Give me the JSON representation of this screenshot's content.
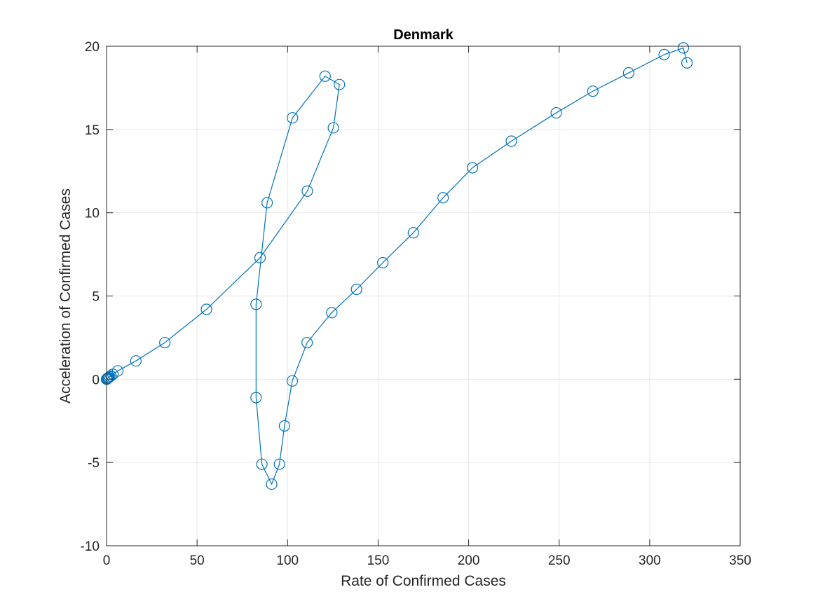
{
  "chart_data": {
    "type": "line",
    "title": "Denmark",
    "xlabel": "Rate of Confirmed Cases",
    "ylabel": "Acceleration of Confirmed Cases",
    "xlim": [
      0,
      350
    ],
    "ylim": [
      -10,
      20
    ],
    "xticks": [
      0,
      50,
      100,
      150,
      200,
      250,
      300,
      350
    ],
    "yticks": [
      -10,
      -5,
      0,
      5,
      10,
      15,
      20
    ],
    "xtick_labels": [
      "0",
      "50",
      "100",
      "150",
      "200",
      "250",
      "300",
      "350"
    ],
    "ytick_labels": [
      "-10",
      "-5",
      "0",
      "5",
      "10",
      "15",
      "20"
    ],
    "grid": true,
    "marker": "circle",
    "line_color": "#0072BD",
    "series": [
      {
        "x": [
          0,
          0.1,
          0.2,
          0.3,
          0.5,
          0.8,
          1.2,
          1.7,
          2.4,
          3.5,
          6.2,
          16.2,
          32.2,
          55.2,
          84.8,
          110.9,
          125.3,
          128.6,
          120.7,
          102.7,
          88.7,
          82.6,
          82.6,
          85.8,
          91.2,
          95.5,
          98.3,
          102.6,
          110.8,
          124.4,
          138.1,
          152.6,
          169.5,
          185.9,
          202.1,
          223.6,
          248.4,
          268.6,
          288.4,
          308.0,
          318.6,
          320.6
        ],
        "y": [
          0,
          0.01,
          0.02,
          0.03,
          0.05,
          0.08,
          0.1,
          0.15,
          0.2,
          0.3,
          0.5,
          1.1,
          2.2,
          4.2,
          7.3,
          11.3,
          15.1,
          17.7,
          18.2,
          15.7,
          10.6,
          4.5,
          -1.1,
          -5.1,
          -6.3,
          -5.1,
          -2.8,
          -0.1,
          2.2,
          4.0,
          5.4,
          7.0,
          8.8,
          10.9,
          12.7,
          14.3,
          16.0,
          17.3,
          18.4,
          19.5,
          19.9,
          19.0
        ]
      }
    ]
  }
}
